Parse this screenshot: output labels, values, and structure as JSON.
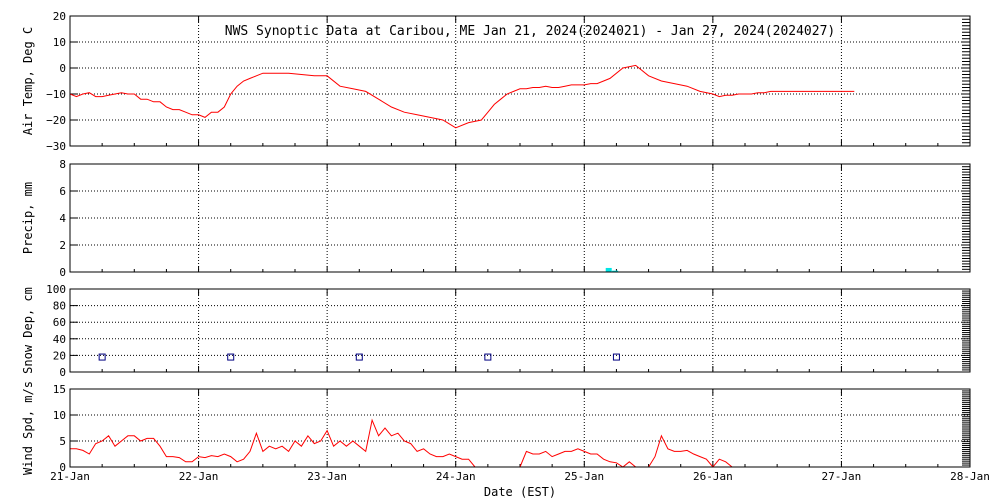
{
  "title": "NWS Synoptic Data at Caribou, ME   Jan 21, 2024(2024021) - Jan 27, 2024(2024027)",
  "xlabel": "Date (EST)",
  "colors": {
    "temp_line": "#ff0000",
    "wind_line": "#ff0000",
    "precip_bar": "#00e5e5",
    "snow_marker": "#000080",
    "grid": "#000000"
  },
  "chart_data": [
    {
      "type": "line",
      "name": "air-temp",
      "ylabel": "Air Temp, Deg C",
      "ylim": [
        -30,
        20
      ],
      "yticks": [
        "20",
        "10",
        "0",
        "−10",
        "−20",
        "−30"
      ],
      "ytick_values": [
        20,
        10,
        0,
        -10,
        -20,
        -30
      ],
      "xlim": [
        0,
        7
      ],
      "grid": true,
      "series": [
        {
          "x": [
            0.0,
            0.05,
            0.1,
            0.15,
            0.2,
            0.25,
            0.3,
            0.35,
            0.4,
            0.45,
            0.5,
            0.55,
            0.6,
            0.65,
            0.7,
            0.75,
            0.8,
            0.85,
            0.9,
            0.95,
            1.0,
            1.05,
            1.1,
            1.15,
            1.2,
            1.25,
            1.3,
            1.35,
            1.4,
            1.45,
            1.5,
            1.6,
            1.7,
            1.8,
            1.9,
            2.0,
            2.1,
            2.2,
            2.3,
            2.4,
            2.5,
            2.6,
            2.7,
            2.8,
            2.9,
            3.0,
            3.1,
            3.2,
            3.25,
            3.3,
            3.35,
            3.4,
            3.45,
            3.5,
            3.55,
            3.6,
            3.65,
            3.7,
            3.75,
            3.8,
            3.85,
            3.9,
            3.95,
            4.0,
            4.05,
            4.1,
            4.15,
            4.2,
            4.3,
            4.4,
            4.5,
            4.6,
            4.7,
            4.8,
            4.9,
            5.0,
            5.05,
            5.1,
            5.15,
            5.2,
            5.25,
            5.3,
            5.35,
            5.4,
            5.45,
            5.5,
            5.55,
            5.6,
            5.65,
            5.7,
            5.75,
            5.8,
            5.85,
            5.9,
            5.95,
            6.0,
            6.05,
            6.1
          ],
          "y": [
            -10,
            -11,
            -10,
            -9.5,
            -11,
            -11,
            -10.5,
            -10,
            -9.5,
            -10,
            -10,
            -12,
            -12,
            -13,
            -13,
            -15,
            -16,
            -16,
            -17,
            -18,
            -18,
            -19,
            -17,
            -17,
            -15,
            -10,
            -7,
            -5,
            -4,
            -3,
            -2,
            -2,
            -2,
            -2.5,
            -3,
            -3,
            -7,
            -8,
            -9,
            -12,
            -15,
            -17,
            -18,
            -19,
            -20,
            -23,
            -21,
            -20,
            -17,
            -14,
            -12,
            -10,
            -9,
            -8,
            -8,
            -7.5,
            -7.5,
            -7,
            -7.5,
            -7.5,
            -7,
            -6.5,
            -6.5,
            -6.5,
            -6,
            -6,
            -5,
            -4,
            0,
            1,
            -3,
            -5,
            -6,
            -7,
            -9,
            -10,
            -11,
            -10.5,
            -10.5,
            -10,
            -10,
            -10,
            -9.5,
            -9.5,
            -9,
            -9,
            -9,
            -9,
            -9,
            -9,
            -9,
            -9,
            -9,
            -9,
            -9,
            -9,
            -9,
            -9
          ]
        }
      ]
    },
    {
      "type": "bar",
      "name": "precip",
      "ylabel": "Precip, mm",
      "ylim": [
        0,
        8
      ],
      "yticks": [
        "8",
        "6",
        "4",
        "2",
        "0"
      ],
      "ytick_values": [
        8,
        6,
        4,
        2,
        0
      ],
      "xlim": [
        0,
        7
      ],
      "grid": true,
      "series": [
        {
          "x": [
            4.19,
            4.24
          ],
          "values": [
            0.3,
            0.1
          ]
        }
      ]
    },
    {
      "type": "scatter",
      "name": "snow-depth",
      "ylabel": "Snow Dep, cm",
      "ylim": [
        0,
        100
      ],
      "yticks": [
        "100",
        "80",
        "60",
        "40",
        "20",
        "0"
      ],
      "ytick_values": [
        100,
        80,
        60,
        40,
        20,
        0
      ],
      "xlim": [
        0,
        7
      ],
      "grid": true,
      "series": [
        {
          "x": [
            0.25,
            1.25,
            2.25,
            3.25,
            4.25
          ],
          "y": [
            18,
            18,
            18,
            18,
            18
          ]
        }
      ]
    },
    {
      "type": "line",
      "name": "wind-speed",
      "ylabel": "Wind Spd, m/s",
      "ylim": [
        0,
        15
      ],
      "yticks": [
        "15",
        "10",
        "5",
        "0"
      ],
      "ytick_values": [
        15,
        10,
        5,
        0
      ],
      "xlim": [
        0,
        7
      ],
      "grid": true,
      "categories": [
        "21-Jan",
        "22-Jan",
        "23-Jan",
        "24-Jan",
        "25-Jan",
        "26-Jan",
        "27-Jan",
        "28-Jan"
      ],
      "series": [
        {
          "x": [
            0,
            0.05,
            0.1,
            0.15,
            0.2,
            0.25,
            0.3,
            0.35,
            0.4,
            0.45,
            0.5,
            0.55,
            0.6,
            0.65,
            0.7,
            0.75,
            0.8,
            0.85,
            0.9,
            0.95,
            1.0,
            1.05,
            1.1,
            1.15,
            1.2,
            1.25,
            1.3,
            1.35,
            1.4,
            1.45,
            1.5,
            1.55,
            1.6,
            1.65,
            1.7,
            1.75,
            1.8,
            1.85,
            1.9,
            1.95,
            2.0,
            2.05,
            2.1,
            2.15,
            2.2,
            2.25,
            2.3,
            2.35,
            2.4,
            2.45,
            2.5,
            2.55,
            2.6,
            2.65,
            2.7,
            2.75,
            2.8,
            2.85,
            2.9,
            2.95,
            3.0,
            3.05,
            3.1,
            3.15
          ],
          "y": [
            3.5,
            3.5,
            3.2,
            2.5,
            4.5,
            5,
            6,
            4,
            5,
            6,
            6,
            5,
            5.5,
            5.5,
            4,
            2,
            2,
            1.8,
            1,
            1,
            2,
            1.8,
            2.2,
            2,
            2.5,
            2,
            1,
            1.5,
            3,
            6.5,
            3,
            4,
            3.5,
            4,
            3,
            5,
            4,
            6,
            4.5,
            5,
            7,
            4,
            5,
            4,
            5,
            4,
            3,
            9,
            6,
            7.5,
            6,
            6.5,
            5,
            4.5,
            3,
            3.5,
            2.5,
            2,
            2,
            2.5,
            2,
            1.5,
            1.5,
            0
          ]
        },
        {
          "x": [
            3.5,
            3.55,
            3.6,
            3.65,
            3.7,
            3.75,
            3.8,
            3.85,
            3.9,
            3.95,
            4.0,
            4.05,
            4.1,
            4.15,
            4.2,
            4.25,
            4.3,
            4.35,
            4.4,
            4.45,
            4.5,
            4.55,
            4.6,
            4.65,
            4.7,
            4.75,
            4.8,
            4.85,
            4.9,
            4.95,
            5.0,
            5.05,
            5.1,
            5.15
          ],
          "y": [
            0,
            3,
            2.5,
            2.5,
            3,
            2,
            2.5,
            3,
            3,
            3.5,
            3,
            2.5,
            2.5,
            1.5,
            1,
            0.8,
            0,
            1,
            0,
            0,
            0,
            2,
            6,
            3.5,
            3,
            3,
            3.2,
            2.5,
            2,
            1.5,
            0,
            1.5,
            1,
            0
          ]
        }
      ]
    }
  ]
}
